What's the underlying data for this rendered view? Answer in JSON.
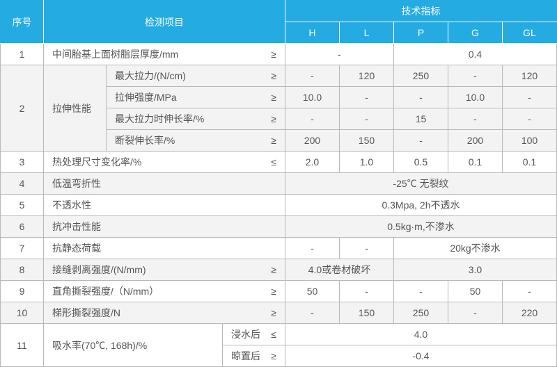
{
  "header": {
    "seq": "序号",
    "item": "检测项目",
    "spec": "技术指标",
    "cols": {
      "H": "H",
      "L": "L",
      "P": "P",
      "G": "G",
      "GL": "GL"
    }
  },
  "rows": {
    "r1": {
      "seq": "1",
      "item": "中间胎基上面树脂层厚度/mm",
      "sym": "≥",
      "H_L": "-",
      "rest": "0.4"
    },
    "r2": {
      "seq": "2",
      "group": "拉伸性能"
    },
    "r2a": {
      "item": "最大拉力/(N/cm)",
      "sym": "≥",
      "H": "-",
      "L": "120",
      "P": "250",
      "G": "-",
      "GL": "120"
    },
    "r2b": {
      "item": "拉伸强度/MPa",
      "sym": "≥",
      "H": "10.0",
      "L": "-",
      "P": "-",
      "G": "10.0",
      "GL": "-"
    },
    "r2c": {
      "item": "最大拉力时伸长率/%",
      "sym": "≥",
      "H": "-",
      "L": "-",
      "P": "15",
      "G": "-",
      "GL": "-"
    },
    "r2d": {
      "item": "断裂伸长率/%",
      "sym": "≥",
      "H": "200",
      "L": "150",
      "P": "-",
      "G": "200",
      "GL": "100"
    },
    "r3": {
      "seq": "3",
      "item": "热处理尺寸变化率/%",
      "sym": "≤",
      "H": "2.0",
      "L": "1.0",
      "P": "0.5",
      "G": "0.1",
      "GL": "0.1"
    },
    "r4": {
      "seq": "4",
      "item": "低温弯折性",
      "merged": "-25℃ 无裂纹"
    },
    "r5": {
      "seq": "5",
      "item": "不透水性",
      "merged": "0.3Mpa, 2h不透水"
    },
    "r6": {
      "seq": "6",
      "item": "抗冲击性能",
      "merged": "0.5kg·m,不渗水"
    },
    "r7": {
      "seq": "7",
      "item": "抗静态荷载",
      "H": "-",
      "L": "-",
      "rest": "20kg不渗水"
    },
    "r8": {
      "seq": "8",
      "item": "接缝剥离强度/(N/mm)",
      "sym": "≥",
      "HL": "4.0或卷材破坏",
      "rest": "3.0"
    },
    "r9": {
      "seq": "9",
      "item": "直角撕裂强度/（N/mm）",
      "sym": "≥",
      "H": "50",
      "L": "-",
      "P": "-",
      "G": "50",
      "GL": "-"
    },
    "r10": {
      "seq": "10",
      "item": "梯形撕裂强度/N",
      "sym": "≥",
      "H": "-",
      "L": "150",
      "P": "250",
      "G": "-",
      "GL": "220"
    },
    "r11": {
      "seq": "11",
      "item": "吸水率(70℃, 168h)/%"
    },
    "r11a": {
      "sub": "浸水后",
      "sym": "≤",
      "merged": "4.0"
    },
    "r11b": {
      "sub": "晾置后",
      "sym": "≥",
      "merged": "-0.4"
    }
  },
  "style": {
    "header_bg": "#24abe2",
    "header_fg": "#ffffff",
    "border": "#b8b8b8",
    "alt_bg": "#f3f3f3",
    "text": "#555555",
    "fontsize": 14
  }
}
